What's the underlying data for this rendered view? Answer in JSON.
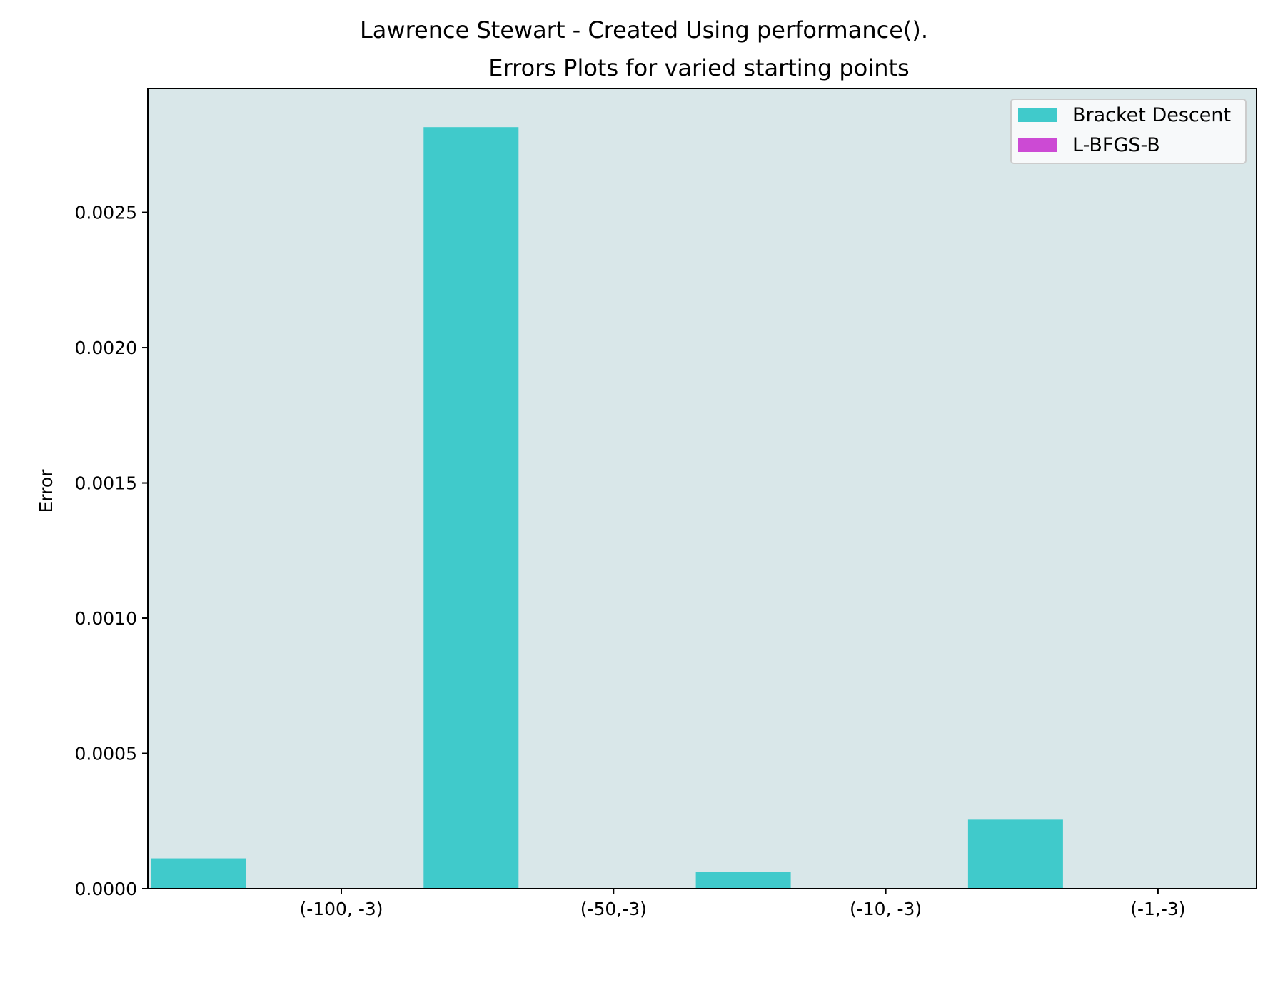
{
  "chart_data": {
    "type": "bar",
    "suptitle": "Lawrence Stewart - Created Using performance().",
    "title": "Errors Plots for varied starting points",
    "xlabel": "",
    "ylabel": "Error",
    "categories": [
      "(-100, -3)",
      "(-50,-3)",
      "(-10, -3)",
      "(-1,-3)"
    ],
    "series": [
      {
        "name": "Bracket Descent",
        "color": "#40cacb",
        "values": [
          0.000112,
          0.002815,
          6.1e-05,
          0.000255
        ]
      },
      {
        "name": "L-BFGS-B",
        "color": "#cc4ad4",
        "values": [
          0.0,
          0.0,
          0.0,
          0.0
        ]
      }
    ],
    "ylim": [
      0,
      0.002958
    ],
    "yticks": [
      "0.0000",
      "0.0005",
      "0.0010",
      "0.0015",
      "0.0020",
      "0.0025"
    ],
    "ytick_values": [
      0,
      0.0005,
      0.001,
      0.0015,
      0.002,
      0.0025
    ],
    "grid": false,
    "legend_position": "top-right",
    "plot_background": "#d9e7e9"
  }
}
